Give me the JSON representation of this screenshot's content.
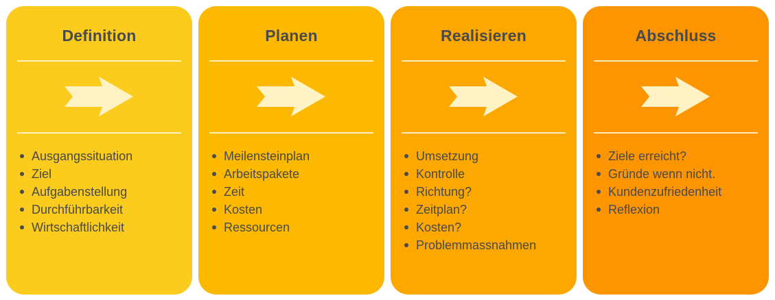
{
  "phases": [
    {
      "title": "Definition",
      "color": "#fbcb1e",
      "items": [
        "Ausgangssituation",
        "Ziel",
        "Aufgabenstellung",
        "Durchführbarkeit",
        "Wirtschaftlichkeit"
      ]
    },
    {
      "title": "Planen",
      "color": "#fcb900",
      "items": [
        "Meilensteinplan",
        "Arbeitspakete",
        "Zeit",
        "Kosten",
        "Ressourcen"
      ]
    },
    {
      "title": "Realisieren",
      "color": "#fca800",
      "items": [
        "Umsetzung",
        "Kontrolle",
        "Richtung?",
        "Zeitplan?",
        "Kosten?",
        "Problemmassnahmen"
      ]
    },
    {
      "title": "Abschluss",
      "color": "#fd9500",
      "items": [
        "Ziele erreicht?",
        "Gründe wenn nicht.",
        "Kundenzufriedenheit",
        "Reflexion"
      ]
    }
  ],
  "arrow_color": "#fff2c4",
  "arrow_icon": "right-arrow-icon",
  "text_color": "#4a4a4a"
}
